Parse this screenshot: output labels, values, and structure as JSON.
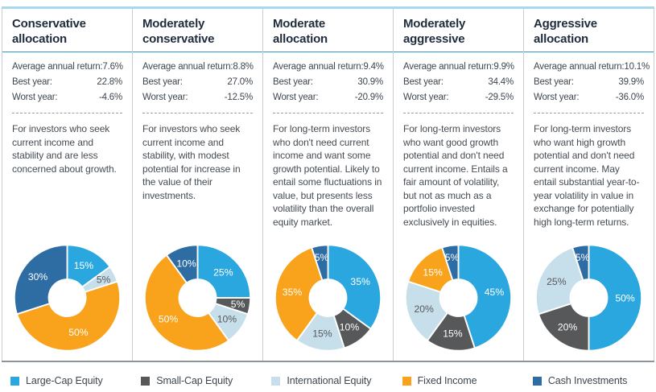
{
  "colors": {
    "large_cap": "#2BA7DF",
    "small_cap": "#575859",
    "international": "#C7DFEA",
    "fixed_income": "#F9A21B",
    "cash": "#2E6CA4",
    "header_rule": "#2E96CE",
    "top_border": "#A9D7EE",
    "title_text": "#1F2C3C"
  },
  "columns": [
    {
      "title": "Conservative allocation",
      "stats": [
        {
          "label": "Average annual return:",
          "value": "7.6%"
        },
        {
          "label": "Best year:",
          "value": "22.8%"
        },
        {
          "label": "Worst year:",
          "value": "-4.6%"
        }
      ],
      "description": "For investors who seek current income and stability and are less concerned about growth."
    },
    {
      "title": "Moderately conservative",
      "stats": [
        {
          "label": "Average annual return:",
          "value": "8.8%"
        },
        {
          "label": "Best year:",
          "value": "27.0%"
        },
        {
          "label": "Worst year:",
          "value": "-12.5%"
        }
      ],
      "description": "For investors who seek current income and stability, with modest potential for increase in the value of their investments."
    },
    {
      "title": "Moderate allocation",
      "stats": [
        {
          "label": "Average annual return:",
          "value": "9.4%"
        },
        {
          "label": "Best year:",
          "value": "30.9%"
        },
        {
          "label": "Worst year:",
          "value": "-20.9%"
        }
      ],
      "description": "For long-term investors who don't need current income and want some growth potential. Likely to entail some fluctuations in value, but presents less volatility than the overall equity market."
    },
    {
      "title": "Moderately aggressive",
      "stats": [
        {
          "label": "Average annual return:",
          "value": "9.9%"
        },
        {
          "label": "Best year:",
          "value": "34.4%"
        },
        {
          "label": "Worst year:",
          "value": "-29.5%"
        }
      ],
      "description": "For long-term investors who want good growth potential and don't need current income. Entails a fair amount of volatility, but not as much as a portfolio invested exclusively in equities."
    },
    {
      "title": "Aggressive allocation",
      "stats": [
        {
          "label": "Average annual return:",
          "value": "10.1%"
        },
        {
          "label": "Best year:",
          "value": "39.9%"
        },
        {
          "label": "Worst year:",
          "value": "-36.0%"
        }
      ],
      "description": "For long-term investors who want high growth potential and don't need current income. May entail substantial year-to-year volatility in value in exchange for potentially high long-term returns."
    }
  ],
  "chart_data": [
    {
      "type": "pie",
      "donut": true,
      "title": "Conservative allocation",
      "segments": [
        {
          "label": "Large-Cap Equity",
          "value": 15,
          "color": "#2BA7DF",
          "text_color": "#FFFFFF"
        },
        {
          "label": "International Equity",
          "value": 5,
          "color": "#C7DFEA",
          "text_color": "#58595B"
        },
        {
          "label": "Fixed Income",
          "value": 50,
          "color": "#F9A21B",
          "text_color": "#FFFFFF"
        },
        {
          "label": "Cash Investments",
          "value": 30,
          "color": "#2E6CA4",
          "text_color": "#FFFFFF"
        }
      ]
    },
    {
      "type": "pie",
      "donut": true,
      "title": "Moderately conservative",
      "segments": [
        {
          "label": "Large-Cap Equity",
          "value": 25,
          "color": "#2BA7DF",
          "text_color": "#FFFFFF"
        },
        {
          "label": "Small-Cap Equity",
          "value": 5,
          "color": "#575859",
          "text_color": "#FFFFFF"
        },
        {
          "label": "International Equity",
          "value": 10,
          "color": "#C7DFEA",
          "text_color": "#58595B"
        },
        {
          "label": "Fixed Income",
          "value": 50,
          "color": "#F9A21B",
          "text_color": "#FFFFFF"
        },
        {
          "label": "Cash Investments",
          "value": 10,
          "color": "#2E6CA4",
          "text_color": "#FFFFFF"
        }
      ]
    },
    {
      "type": "pie",
      "donut": true,
      "title": "Moderate allocation",
      "segments": [
        {
          "label": "Large-Cap Equity",
          "value": 35,
          "color": "#2BA7DF",
          "text_color": "#FFFFFF"
        },
        {
          "label": "Small-Cap Equity",
          "value": 10,
          "color": "#575859",
          "text_color": "#FFFFFF"
        },
        {
          "label": "International Equity",
          "value": 15,
          "color": "#C7DFEA",
          "text_color": "#58595B"
        },
        {
          "label": "Fixed Income",
          "value": 35,
          "color": "#F9A21B",
          "text_color": "#FFFFFF"
        },
        {
          "label": "Cash Investments",
          "value": 5,
          "color": "#2E6CA4",
          "text_color": "#FFFFFF"
        }
      ]
    },
    {
      "type": "pie",
      "donut": true,
      "title": "Moderately aggressive",
      "segments": [
        {
          "label": "Large-Cap Equity",
          "value": 45,
          "color": "#2BA7DF",
          "text_color": "#FFFFFF"
        },
        {
          "label": "Small-Cap Equity",
          "value": 15,
          "color": "#575859",
          "text_color": "#FFFFFF"
        },
        {
          "label": "International Equity",
          "value": 20,
          "color": "#C7DFEA",
          "text_color": "#58595B"
        },
        {
          "label": "Fixed Income",
          "value": 15,
          "color": "#F9A21B",
          "text_color": "#FFFFFF"
        },
        {
          "label": "Cash Investments",
          "value": 5,
          "color": "#2E6CA4",
          "text_color": "#FFFFFF"
        }
      ]
    },
    {
      "type": "pie",
      "donut": true,
      "title": "Aggressive allocation",
      "segments": [
        {
          "label": "Large-Cap Equity",
          "value": 50,
          "color": "#2BA7DF",
          "text_color": "#FFFFFF"
        },
        {
          "label": "Small-Cap Equity",
          "value": 20,
          "color": "#575859",
          "text_color": "#FFFFFF"
        },
        {
          "label": "International Equity",
          "value": 25,
          "color": "#C7DFEA",
          "text_color": "#58595B"
        },
        {
          "label": "Cash Investments",
          "value": 5,
          "color": "#2E6CA4",
          "text_color": "#FFFFFF"
        }
      ]
    }
  ],
  "legend": {
    "items": [
      {
        "label": "Large-Cap Equity",
        "color": "#2BA7DF"
      },
      {
        "label": "Small-Cap Equity",
        "color": "#575859"
      },
      {
        "label": "International Equity",
        "color": "#C7DFEA"
      },
      {
        "label": "Fixed Income",
        "color": "#F9A21B"
      },
      {
        "label": "Cash Investments",
        "color": "#2E6CA4"
      }
    ]
  }
}
